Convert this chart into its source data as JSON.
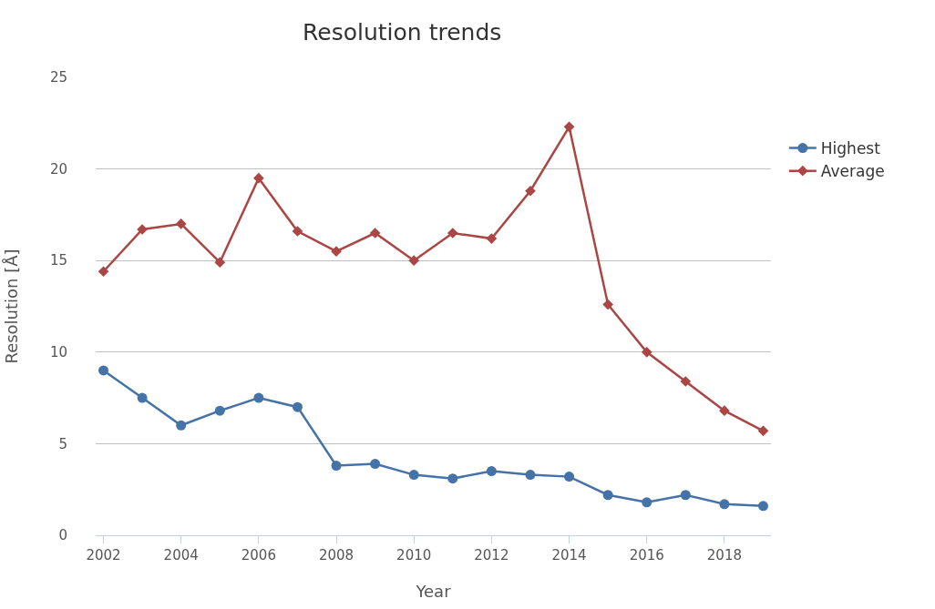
{
  "chart_data": {
    "type": "line",
    "title": "Resolution trends",
    "xlabel": "Year",
    "ylabel": "Resolution [Å]",
    "x": [
      2002,
      2003,
      2004,
      2005,
      2006,
      2007,
      2008,
      2009,
      2010,
      2011,
      2012,
      2013,
      2014,
      2015,
      2016,
      2017,
      2018,
      2019
    ],
    "series": [
      {
        "name": "Highest",
        "color": "#4572a7",
        "marker": "circle",
        "values": [
          9.0,
          7.5,
          6.0,
          6.8,
          7.5,
          7.0,
          3.8,
          3.9,
          3.3,
          3.1,
          3.5,
          3.3,
          3.2,
          2.2,
          1.8,
          2.2,
          1.7,
          1.6
        ]
      },
      {
        "name": "Average",
        "color": "#aa4643",
        "marker": "diamond",
        "values": [
          14.4,
          16.7,
          17.0,
          14.9,
          19.5,
          16.6,
          15.5,
          16.5,
          15.0,
          16.5,
          16.2,
          18.8,
          22.3,
          12.6,
          10.0,
          8.4,
          6.8,
          5.7
        ]
      }
    ],
    "xlim": [
      2001.8,
      2019.2
    ],
    "xticks": [
      2002,
      2004,
      2006,
      2008,
      2010,
      2012,
      2014,
      2016,
      2018
    ],
    "ylim": [
      0,
      25
    ],
    "yticks": [
      0,
      5,
      10,
      15,
      20,
      25
    ],
    "grid": "y",
    "legend": "right"
  }
}
